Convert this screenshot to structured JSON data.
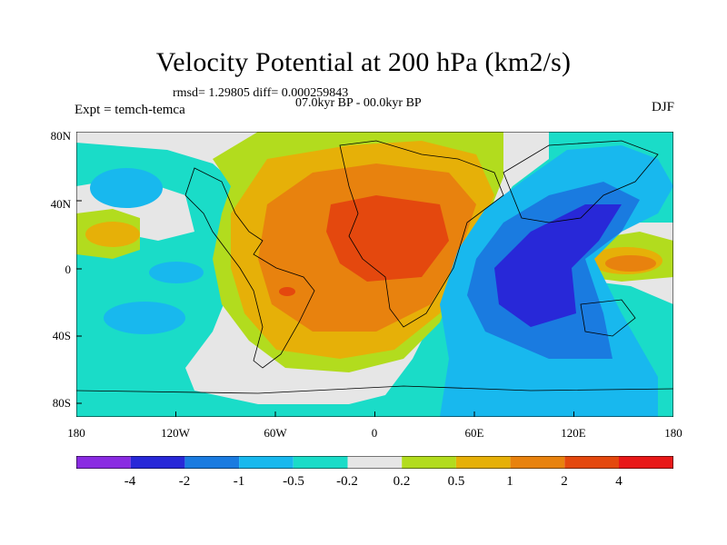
{
  "title": "Velocity Potential at 200 hPa (km2/s)",
  "stats": "rmsd= 1.29805 diff= 0.000259843",
  "period": "07.0kyr BP - 00.0kyr BP",
  "experiment": "Expt = temch-temca",
  "season": "DJF",
  "map": {
    "lat_labels": [
      "80N",
      "40N",
      "0",
      "40S",
      "80S"
    ],
    "lon_labels": [
      "180",
      "120W",
      "60W",
      "0",
      "60E",
      "120E",
      "180"
    ]
  },
  "colorbar": {
    "colors": [
      "#8a2be2",
      "#2828d8",
      "#1a7be0",
      "#18b8ee",
      "#1adcc8",
      "#e6e6e6",
      "#b2dc1e",
      "#e6b008",
      "#e8820e",
      "#e4480e",
      "#e81818"
    ],
    "labels": [
      "-4",
      "-2",
      "-1",
      "-0.5",
      "-0.2",
      "0.2",
      "0.5",
      "1",
      "2",
      "4"
    ]
  }
}
